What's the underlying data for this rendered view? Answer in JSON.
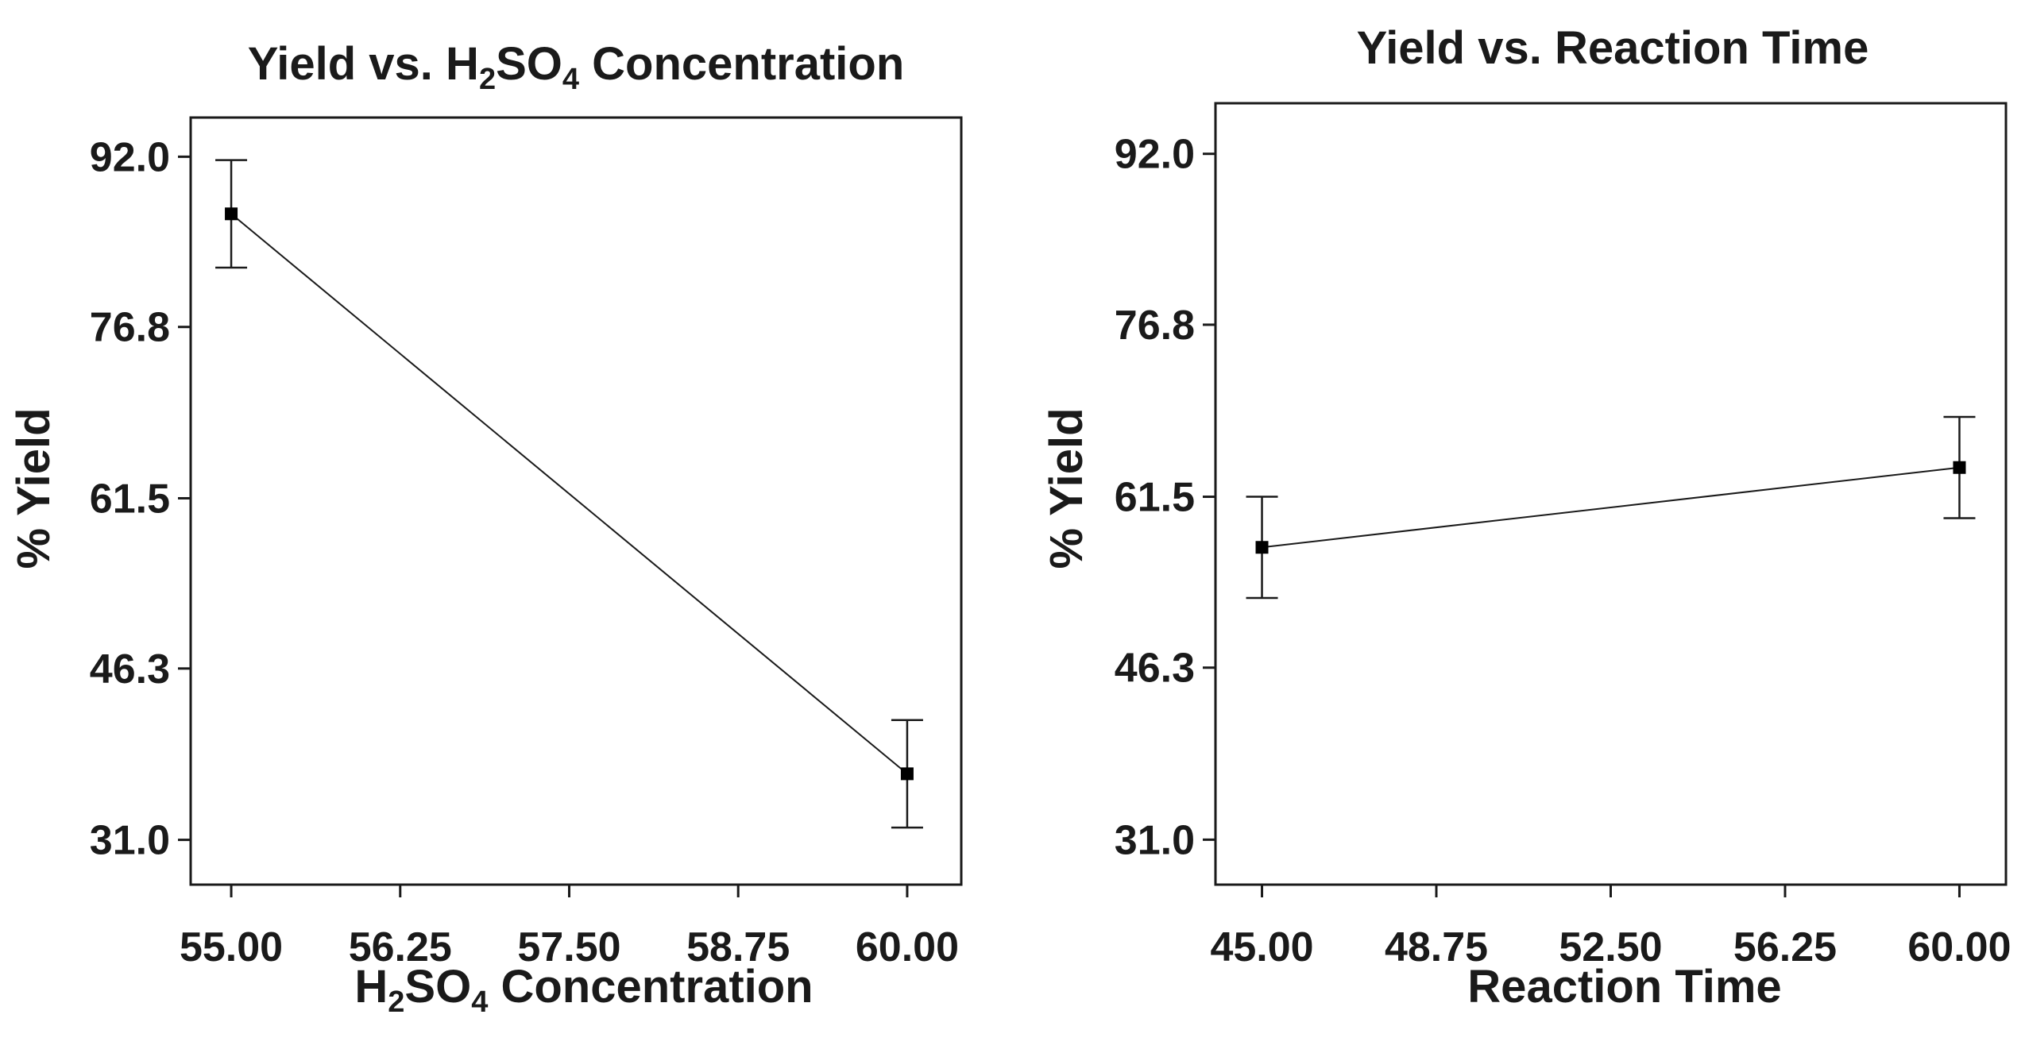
{
  "chart_data": [
    {
      "type": "line",
      "title": "Yield vs. H2SO4 Concentration",
      "title_parts": {
        "a": "Yield vs. H",
        "sub1": "2",
        "b": "SO",
        "sub2": "4",
        "c": " Concentration"
      },
      "xlabel": "H2SO4 Concentration",
      "xlabel_parts": {
        "a": "H",
        "sub1": "2",
        "b": "SO",
        "sub2": "4",
        "c": " Concentration"
      },
      "ylabel": "% Yield",
      "x_ticks": [
        "55.00",
        "56.25",
        "57.50",
        "58.75",
        "60.00"
      ],
      "y_ticks": [
        "92.0",
        "76.8",
        "61.5",
        "46.3",
        "31.0"
      ],
      "xlim": [
        54.7,
        60.4
      ],
      "ylim": [
        27.0,
        95.5
      ],
      "x": [
        55.0,
        60.0
      ],
      "y": [
        86.9,
        36.9
      ],
      "error_low": [
        82.1,
        32.1
      ],
      "error_high": [
        91.7,
        41.7
      ]
    },
    {
      "type": "line",
      "title": "Yield vs. Reaction Time",
      "xlabel": "Reaction Time",
      "ylabel": "% Yield",
      "x_ticks": [
        "45.00",
        "48.75",
        "52.50",
        "56.25",
        "60.00"
      ],
      "y_ticks": [
        "92.0",
        "76.8",
        "61.5",
        "46.3",
        "31.0"
      ],
      "xlim": [
        44.0,
        61.0
      ],
      "ylim": [
        27.0,
        96.5
      ],
      "x": [
        45.0,
        60.0
      ],
      "y": [
        57.0,
        64.1
      ],
      "error_low": [
        52.5,
        59.6
      ],
      "error_high": [
        61.5,
        68.6
      ]
    }
  ]
}
